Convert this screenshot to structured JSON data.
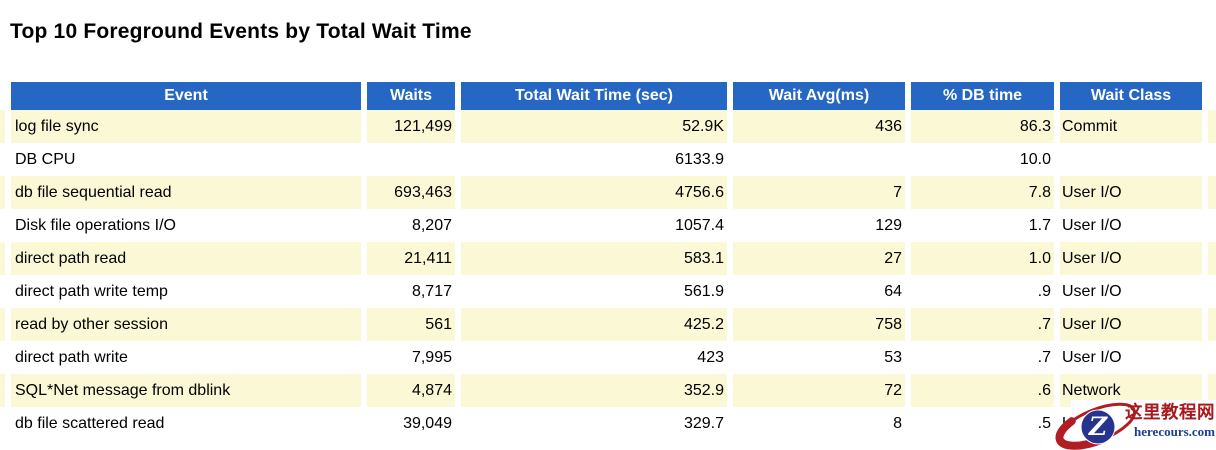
{
  "page": {
    "title": "Top 10 Foreground Events by Total Wait Time"
  },
  "table": {
    "columns": [
      {
        "key": "event",
        "label": "Event",
        "align": "al"
      },
      {
        "key": "waits",
        "label": "Waits",
        "align": "ar"
      },
      {
        "key": "total_wait_time_sec",
        "label": "Total Wait Time (sec)",
        "align": "ar"
      },
      {
        "key": "wait_avg_ms",
        "label": "Wait Avg(ms)",
        "align": "ar"
      },
      {
        "key": "pct_db_time",
        "label": "% DB time",
        "align": "ar"
      },
      {
        "key": "wait_class",
        "label": "Wait Class",
        "align": "cls"
      }
    ],
    "rows": [
      {
        "event": "log file sync",
        "waits": "121,499",
        "total_wait_time_sec": "52.9K",
        "wait_avg_ms": "436",
        "pct_db_time": "86.3",
        "wait_class": "Commit"
      },
      {
        "event": "DB CPU",
        "waits": "",
        "total_wait_time_sec": "6133.9",
        "wait_avg_ms": "",
        "pct_db_time": "10.0",
        "wait_class": ""
      },
      {
        "event": "db file sequential read",
        "waits": "693,463",
        "total_wait_time_sec": "4756.6",
        "wait_avg_ms": "7",
        "pct_db_time": "7.8",
        "wait_class": "User I/O"
      },
      {
        "event": "Disk file operations I/O",
        "waits": "8,207",
        "total_wait_time_sec": "1057.4",
        "wait_avg_ms": "129",
        "pct_db_time": "1.7",
        "wait_class": "User I/O"
      },
      {
        "event": "direct path read",
        "waits": "21,411",
        "total_wait_time_sec": "583.1",
        "wait_avg_ms": "27",
        "pct_db_time": "1.0",
        "wait_class": "User I/O"
      },
      {
        "event": "direct path write temp",
        "waits": "8,717",
        "total_wait_time_sec": "561.9",
        "wait_avg_ms": "64",
        "pct_db_time": ".9",
        "wait_class": "User I/O"
      },
      {
        "event": "read by other session",
        "waits": "561",
        "total_wait_time_sec": "425.2",
        "wait_avg_ms": "758",
        "pct_db_time": ".7",
        "wait_class": "User I/O"
      },
      {
        "event": "direct path write",
        "waits": "7,995",
        "total_wait_time_sec": "423",
        "wait_avg_ms": "53",
        "pct_db_time": ".7",
        "wait_class": "User I/O"
      },
      {
        "event": "SQL*Net message from dblink",
        "waits": "4,874",
        "total_wait_time_sec": "352.9",
        "wait_avg_ms": "72",
        "pct_db_time": ".6",
        "wait_class": "Network"
      },
      {
        "event": "db file scattered read",
        "waits": "39,049",
        "total_wait_time_sec": "329.7",
        "wait_avg_ms": "8",
        "pct_db_time": ".5",
        "wait_class": "User I/O"
      }
    ]
  },
  "watermark": {
    "logo_letter": "Z",
    "site_name": "这里教程网",
    "site_url": "herecours.com"
  },
  "colors": {
    "header_bg": "#2767C4",
    "header_text": "#FFFFFF",
    "row_alt_bg": "#FBF8D5",
    "row_bg": "#FFFFFF",
    "watermark_red": "#B01E23",
    "watermark_circle_blue": "#26348F",
    "watermark_text_red": "#A8191E",
    "watermark_url_blue": "#1D3E8F"
  }
}
